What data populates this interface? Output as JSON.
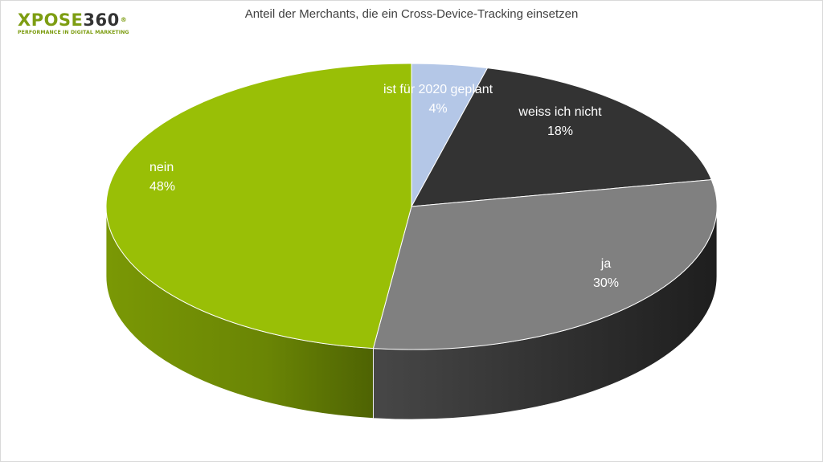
{
  "logo": {
    "text_a": "XPOSE",
    "text_b": "360",
    "reg": "®",
    "tagline": "PERFORMANCE IN DIGITAL MARKETING"
  },
  "chart_data": {
    "type": "pie",
    "title": "Anteil der Merchants, die ein Cross-Device-Tracking einsetzen",
    "slices": [
      {
        "label": "ist für 2020 geplant",
        "value": 4,
        "value_label": "4%",
        "color": "#b4c7e7"
      },
      {
        "label": "weiss ich nicht",
        "value": 18,
        "value_label": "18%",
        "color": "#333333"
      },
      {
        "label": "ja",
        "value": 30,
        "value_label": "30%",
        "color": "#808080"
      },
      {
        "label": "nein",
        "value": 48,
        "value_label": "48%",
        "color": "#99bf06"
      }
    ],
    "legend": "none"
  }
}
